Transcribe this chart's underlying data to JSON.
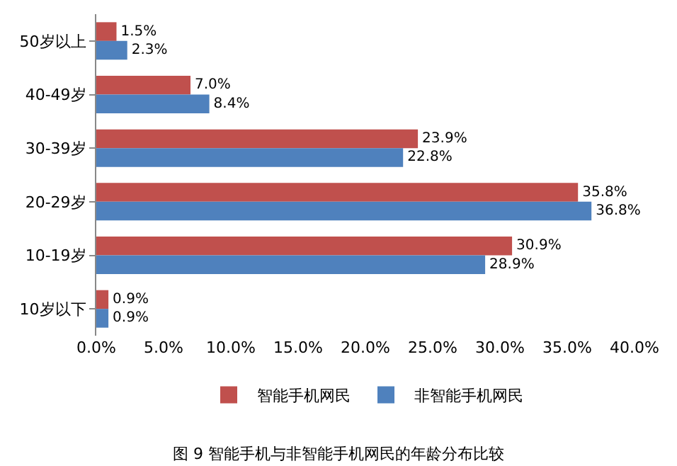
{
  "chart_data": {
    "type": "bar",
    "orientation": "horizontal",
    "title": "图 9 智能手机与非智能手机网民的年龄分布比较",
    "categories": [
      "50岁以上",
      "40-49岁",
      "30-39岁",
      "20-29岁",
      "10-19岁",
      "10岁以下"
    ],
    "series": [
      {
        "name": "智能手机网民",
        "color": "#c0504d",
        "values": [
          1.5,
          7.0,
          23.9,
          35.8,
          30.9,
          0.9
        ],
        "value_labels": [
          "1.5%",
          "7.0%",
          "23.9%",
          "35.8%",
          "30.9%",
          "0.9%"
        ]
      },
      {
        "name": "非智能手机网民",
        "color": "#4f81bd",
        "values": [
          2.3,
          8.4,
          22.8,
          36.8,
          28.9,
          0.9
        ],
        "value_labels": [
          "2.3%",
          "8.4%",
          "22.8%",
          "36.8%",
          "28.9%",
          "0.9%"
        ]
      }
    ],
    "xlim": [
      0,
      40
    ],
    "xticks": [
      {
        "value": 0,
        "label": "0.0%"
      },
      {
        "value": 5,
        "label": "5.0%"
      },
      {
        "value": 10,
        "label": "10.0%"
      },
      {
        "value": 15,
        "label": "15.0%"
      },
      {
        "value": 20,
        "label": "20.0%"
      },
      {
        "value": 25,
        "label": "25.0%"
      },
      {
        "value": 30,
        "label": "30.0%"
      },
      {
        "value": 35,
        "label": "35.0%"
      },
      {
        "value": 40,
        "label": "40.0%"
      }
    ],
    "grid": false,
    "legend": "bottom"
  }
}
